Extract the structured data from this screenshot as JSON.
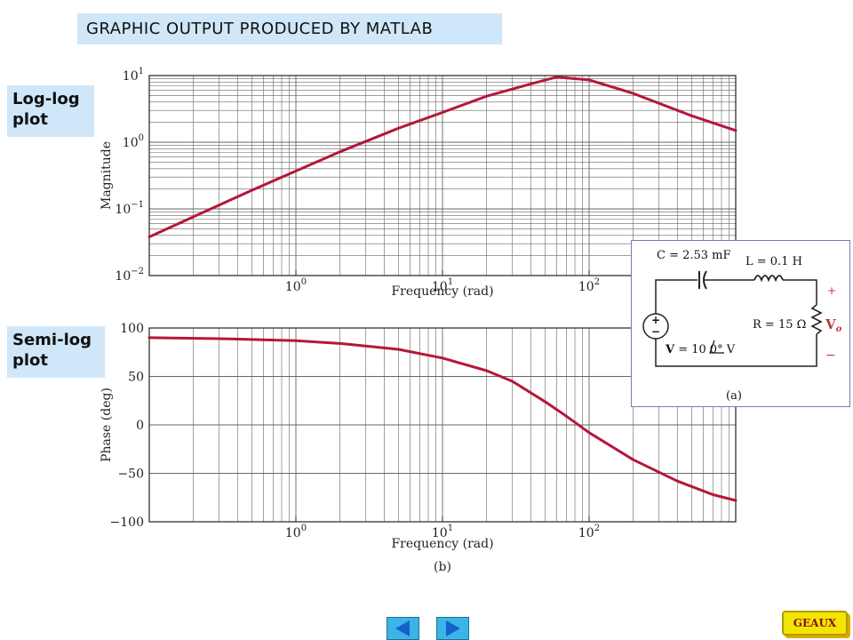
{
  "banner": "GRAPHIC OUTPUT PRODUCED BY MATLAB",
  "labels": {
    "loglog": "Log-log plot",
    "semilog": "Semi-log plot"
  },
  "colors": {
    "curve": "#b5173a",
    "label_bg": "#cfe7f8",
    "grid": "#555555"
  },
  "chart_data": [
    {
      "type": "line",
      "scale": "log-log",
      "xlabel": "Frequency (rad)",
      "ylabel": "Magnitude",
      "xlim": [
        0.1,
        1000
      ],
      "ylim": [
        0.01,
        10
      ],
      "xticks": [
        1,
        10,
        100
      ],
      "xtick_labels": [
        "10^0",
        "10^1",
        "10^2"
      ],
      "yticks": [
        0.01,
        0.1,
        1,
        10
      ],
      "ytick_labels": [
        "10^-2",
        "10^-1",
        "10^0",
        "10^1"
      ],
      "grid": true,
      "series": [
        {
          "x": [
            0.1,
            0.2,
            0.5,
            1,
            2,
            5,
            10,
            20,
            40,
            60,
            100,
            200,
            500,
            1000
          ],
          "y": [
            0.038,
            0.076,
            0.19,
            0.37,
            0.72,
            1.62,
            2.8,
            4.9,
            7.5,
            9.5,
            8.6,
            5.4,
            2.5,
            1.5
          ]
        }
      ]
    },
    {
      "type": "line",
      "scale": "semilogx",
      "xlabel": "Frequency (rad)",
      "ylabel": "Phase (deg)",
      "caption": "(b)",
      "xlim": [
        0.1,
        1000
      ],
      "ylim": [
        -100,
        100
      ],
      "xticks": [
        1,
        10,
        100
      ],
      "xtick_labels": [
        "10^0",
        "10^1",
        "10^2"
      ],
      "yticks": [
        100,
        50,
        0,
        -50,
        -100
      ],
      "ytick_labels": [
        "100",
        "50",
        "0",
        "−50",
        "−100"
      ],
      "grid": true,
      "series": [
        {
          "x": [
            0.1,
            0.3,
            1,
            2,
            5,
            10,
            20,
            30,
            50,
            70,
            100,
            200,
            400,
            700,
            1000
          ],
          "y": [
            90,
            89,
            87,
            84,
            78,
            69,
            56,
            45,
            24,
            9,
            -8,
            -36,
            -58,
            -72,
            -78
          ]
        }
      ]
    }
  ],
  "circuit": {
    "caption": "(a)",
    "capacitor": "C = 2.53 mF",
    "inductor": "L = 0.1 H",
    "resistor": "R = 15 Ω",
    "source_v": "V",
    "source_rest": " = 10",
    "source_angle": "0°",
    "source_unit": " V",
    "output": "V",
    "output_sub": "o",
    "plus": "+",
    "minus": "−"
  },
  "nav": {
    "geaux": "GEAUX"
  }
}
